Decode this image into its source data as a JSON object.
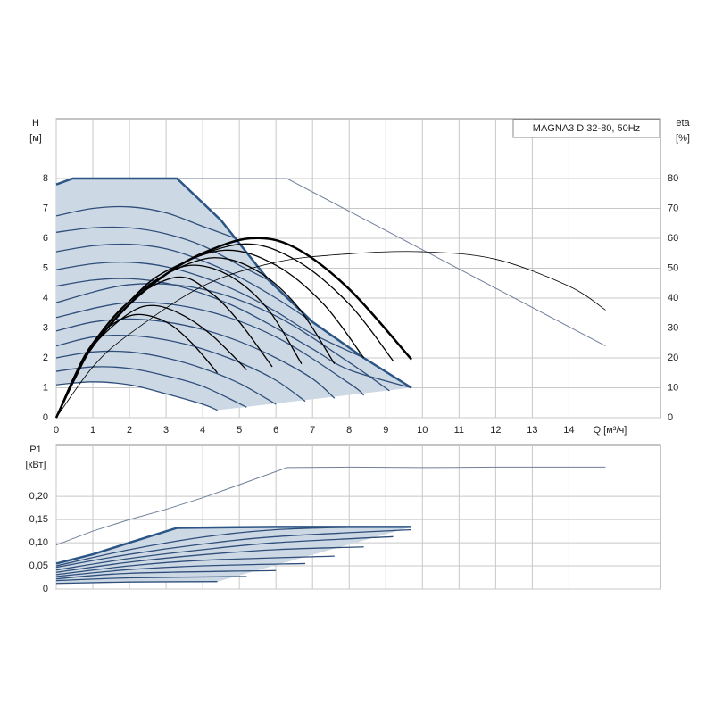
{
  "chart_data": [
    {
      "type": "line",
      "title": "MAGNA3 D 32-80, 50Hz",
      "xlabel": "Q [м³/ч]",
      "ylabel": "H",
      "yunit": "[м]",
      "y2label": "eta",
      "y2unit": "[%]",
      "xlim": [
        0,
        16.5
      ],
      "ylim": [
        0,
        10
      ],
      "y2lim": [
        0,
        100
      ],
      "xticks": [
        0,
        1,
        2,
        3,
        4,
        5,
        6,
        7,
        8,
        9,
        10,
        11,
        12,
        13,
        14
      ],
      "yticks": [
        0,
        1,
        2,
        3,
        4,
        5,
        6,
        7,
        8
      ],
      "y2ticks": [
        0,
        10,
        20,
        30,
        40,
        50,
        60,
        70,
        80
      ],
      "grid": true,
      "series": [
        {
          "color": "#6f7f99",
          "width": 1,
          "smooth": false,
          "x": [
            0.45,
            6.3,
            15
          ],
          "values": [
            8,
            8,
            2.4
          ]
        },
        {
          "color": "#2b5585",
          "width": 2.5,
          "smooth": false,
          "fill": "#cdd8e5",
          "x": [
            0,
            0.45,
            3.3,
            4.5,
            5.8,
            7,
            8.4,
            9.7
          ],
          "values": [
            7.8,
            8,
            8,
            6.6,
            4.6,
            3.2,
            2.0,
            1.0
          ]
        },
        {
          "color": "#2f4f7a",
          "width": 1.3,
          "smooth": true,
          "x": [
            0,
            1,
            2,
            3,
            4,
            4.9
          ],
          "values": [
            6.75,
            7.0,
            7.05,
            6.85,
            6.4,
            6.0
          ]
        },
        {
          "color": "#2f4f7a",
          "width": 1.3,
          "smooth": true,
          "x": [
            0,
            1,
            2,
            3,
            4,
            5,
            5.8
          ],
          "values": [
            6.2,
            6.35,
            6.35,
            6.15,
            5.75,
            5.1,
            4.6
          ]
        },
        {
          "color": "#2f4f7a",
          "width": 1.3,
          "smooth": true,
          "x": [
            0,
            1,
            2,
            3,
            4,
            5,
            6,
            7
          ],
          "values": [
            5.55,
            5.75,
            5.8,
            5.65,
            5.25,
            4.7,
            4.0,
            3.2
          ]
        },
        {
          "color": "#2f4f7a",
          "width": 1.3,
          "smooth": true,
          "x": [
            0,
            1,
            2,
            3,
            4,
            5,
            6,
            7,
            8.4
          ],
          "values": [
            4.95,
            5.15,
            5.2,
            5.05,
            4.7,
            4.2,
            3.55,
            2.8,
            2.0
          ]
        },
        {
          "color": "#2f4f7a",
          "width": 1.3,
          "smooth": true,
          "x": [
            0,
            1,
            2,
            3,
            4,
            5,
            6,
            7,
            8,
            9.7
          ],
          "values": [
            4.4,
            4.6,
            4.65,
            4.5,
            4.15,
            3.65,
            3.0,
            2.3,
            1.6,
            1.0
          ]
        },
        {
          "color": "#2f4f7a",
          "width": 1.3,
          "smooth": true,
          "x": [
            0,
            2,
            4,
            6,
            8,
            9.1
          ],
          "values": [
            3.85,
            4.45,
            4.3,
            3.4,
            1.85,
            0.9
          ]
        },
        {
          "color": "#2f4f7a",
          "width": 1.3,
          "smooth": true,
          "x": [
            0,
            2,
            4,
            6,
            8,
            8.4
          ],
          "values": [
            3.35,
            3.85,
            3.6,
            2.7,
            1.15,
            0.75
          ]
        },
        {
          "color": "#2f4f7a",
          "width": 1.3,
          "smooth": true,
          "x": [
            0,
            1,
            2,
            3,
            4,
            5,
            6,
            7,
            7.6
          ],
          "values": [
            2.9,
            3.2,
            3.3,
            3.2,
            2.95,
            2.55,
            2.0,
            1.3,
            0.65
          ]
        },
        {
          "color": "#2f4f7a",
          "width": 1.3,
          "smooth": true,
          "x": [
            0,
            1,
            2,
            3,
            4,
            5,
            6,
            6.8
          ],
          "values": [
            2.4,
            2.7,
            2.75,
            2.6,
            2.3,
            1.85,
            1.25,
            0.55
          ]
        },
        {
          "color": "#2f4f7a",
          "width": 1.3,
          "smooth": true,
          "x": [
            0,
            1,
            2,
            3,
            4,
            5,
            6.0
          ],
          "values": [
            2.0,
            2.2,
            2.2,
            2.0,
            1.65,
            1.15,
            0.45
          ]
        },
        {
          "color": "#2f4f7a",
          "width": 1.3,
          "smooth": true,
          "x": [
            0,
            1,
            2,
            3,
            4,
            5.2
          ],
          "values": [
            1.55,
            1.7,
            1.65,
            1.4,
            1.05,
            0.35
          ]
        },
        {
          "color": "#2f4f7a",
          "width": 1.3,
          "smooth": true,
          "fill_base": true,
          "x": [
            0,
            1,
            2,
            3,
            4,
            4.4
          ],
          "values": [
            1.1,
            1.2,
            1.1,
            0.8,
            0.45,
            0.25
          ]
        },
        {
          "color": "#000000",
          "width": 0.8,
          "smooth": true,
          "axis": "y2",
          "x": [
            0,
            1,
            2,
            4,
            6,
            8,
            10,
            12,
            14,
            15
          ],
          "values": [
            0,
            17,
            28,
            44,
            52,
            54.8,
            55.5,
            53,
            44,
            36
          ]
        },
        {
          "color": "#000000",
          "width": 1.3,
          "smooth": true,
          "axis": "y2",
          "x": [
            0,
            0.5,
            1,
            1.5,
            2.2,
            3,
            3.7,
            4.4
          ],
          "values": [
            0,
            14,
            25,
            31,
            34.5,
            32,
            25,
            15
          ]
        },
        {
          "color": "#000000",
          "width": 1.3,
          "smooth": true,
          "axis": "y2",
          "x": [
            0,
            0.5,
            1,
            2,
            2.7,
            3.5,
            4.3,
            5.2
          ],
          "values": [
            0,
            13,
            24,
            35,
            37.5,
            34,
            27,
            16
          ]
        },
        {
          "color": "#000000",
          "width": 1.3,
          "smooth": true,
          "axis": "y2",
          "x": [
            0,
            0.5,
            1,
            2,
            3.3,
            4.2,
            5,
            5.9
          ],
          "values": [
            0,
            14,
            25,
            39,
            47,
            42,
            32,
            17
          ]
        },
        {
          "color": "#000000",
          "width": 1.3,
          "smooth": true,
          "axis": "y2",
          "x": [
            0,
            0.5,
            1,
            2,
            3,
            3.8,
            4.8,
            5.8,
            6.7
          ],
          "values": [
            0,
            14,
            25,
            39,
            48,
            51,
            47,
            36,
            18
          ]
        },
        {
          "color": "#000000",
          "width": 1.3,
          "smooth": true,
          "axis": "y2",
          "x": [
            0,
            0.5,
            1,
            2,
            3,
            4.3,
            5.5,
            6.6,
            7.6
          ],
          "values": [
            0,
            14,
            25,
            39,
            48,
            53.5,
            49,
            37,
            18
          ]
        },
        {
          "color": "#000000",
          "width": 1.3,
          "smooth": true,
          "axis": "y2",
          "x": [
            0,
            0.5,
            1,
            2,
            3,
            4.6,
            6,
            7.3,
            8.4
          ],
          "values": [
            0,
            14,
            25,
            39,
            49,
            56,
            51,
            38,
            20
          ]
        },
        {
          "color": "#000000",
          "width": 1.3,
          "smooth": true,
          "axis": "y2",
          "x": [
            0,
            0.5,
            1,
            2,
            3,
            5,
            6.5,
            8,
            9.2
          ],
          "values": [
            0,
            14,
            25,
            39,
            49,
            58,
            53,
            38,
            19
          ]
        },
        {
          "color": "#000000",
          "width": 2.5,
          "smooth": true,
          "axis": "y2",
          "x": [
            0,
            0.5,
            1,
            2,
            3,
            4,
            5.3,
            6.5,
            8,
            9.7
          ],
          "values": [
            0,
            13,
            24,
            38,
            48,
            55,
            60,
            57,
            43,
            19.5
          ]
        }
      ]
    },
    {
      "type": "line",
      "ylabel": "P1",
      "yunit": "[кВт]",
      "xlim": [
        0,
        16.5
      ],
      "ylim": [
        0,
        0.31
      ],
      "yticks": [
        0,
        {
          "value": 0.05,
          "label": "0,05"
        },
        {
          "value": 0.1,
          "label": "0,10"
        },
        {
          "value": 0.15,
          "label": "0,15"
        },
        {
          "value": 0.2,
          "label": "0,20"
        }
      ],
      "grid": true,
      "series": [
        {
          "color": "#6f7f99",
          "width": 1,
          "smooth": false,
          "x": [
            0,
            1,
            2,
            3,
            4,
            5,
            6.3,
            8,
            10,
            12,
            15
          ],
          "values": [
            0.095,
            0.125,
            0.15,
            0.172,
            0.197,
            0.225,
            0.262,
            0.263,
            0.262,
            0.263,
            0.263
          ]
        },
        {
          "color": "#2b5585",
          "width": 2.5,
          "smooth": false,
          "fill": "#cdd8e5",
          "x": [
            0,
            1,
            2,
            3.3,
            6,
            9.7
          ],
          "values": [
            0.055,
            0.075,
            0.1,
            0.132,
            0.134,
            0.134
          ]
        },
        {
          "color": "#2f4f7a",
          "width": 1.3,
          "smooth": true,
          "x": [
            0,
            2,
            4,
            6,
            8.4
          ],
          "values": [
            0.05,
            0.085,
            0.112,
            0.128,
            0.134
          ]
        },
        {
          "color": "#2f4f7a",
          "width": 1.3,
          "smooth": true,
          "x": [
            0,
            2,
            4,
            6,
            9.7
          ],
          "values": [
            0.047,
            0.075,
            0.097,
            0.113,
            0.128
          ]
        },
        {
          "color": "#2f4f7a",
          "width": 1.3,
          "smooth": true,
          "x": [
            0,
            2,
            4,
            6,
            9.2
          ],
          "values": [
            0.041,
            0.066,
            0.085,
            0.1,
            0.113
          ]
        },
        {
          "color": "#2f4f7a",
          "width": 1.3,
          "smooth": true,
          "x": [
            0,
            2,
            4,
            6,
            8.4
          ],
          "values": [
            0.036,
            0.058,
            0.074,
            0.085,
            0.091
          ]
        },
        {
          "color": "#2f4f7a",
          "width": 1.3,
          "smooth": true,
          "x": [
            0,
            2,
            4,
            7.6
          ],
          "values": [
            0.031,
            0.05,
            0.062,
            0.071
          ]
        },
        {
          "color": "#2f4f7a",
          "width": 1.3,
          "smooth": true,
          "x": [
            0,
            2,
            4,
            6.8
          ],
          "values": [
            0.027,
            0.042,
            0.05,
            0.055
          ]
        },
        {
          "color": "#2f4f7a",
          "width": 1.3,
          "smooth": true,
          "x": [
            0,
            2,
            6.0
          ],
          "values": [
            0.022,
            0.034,
            0.04
          ]
        },
        {
          "color": "#2f4f7a",
          "width": 1.3,
          "smooth": true,
          "x": [
            0,
            2,
            5.2
          ],
          "values": [
            0.018,
            0.024,
            0.027
          ]
        },
        {
          "color": "#2f4f7a",
          "width": 1.3,
          "smooth": true,
          "fill_base": true,
          "x": [
            0,
            2,
            4.4
          ],
          "values": [
            0.012,
            0.015,
            0.016
          ]
        }
      ]
    }
  ]
}
